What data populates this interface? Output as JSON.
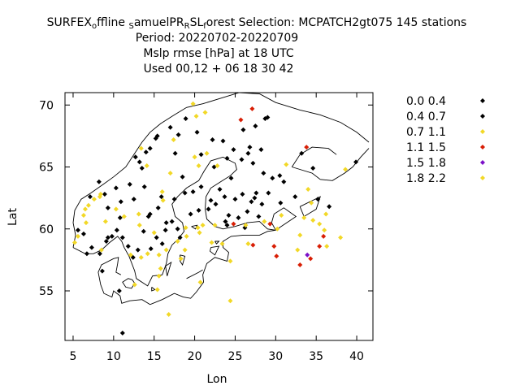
{
  "chart_data": {
    "type": "scatter",
    "title": {
      "line1_parts": [
        {
          "text": "S",
          "sub": false
        },
        {
          "text": "URFEX",
          "sub": false
        },
        {
          "text": "o",
          "sub": true
        },
        {
          "text": "ffline ",
          "sub": false
        },
        {
          "text": "S",
          "sub": true
        },
        {
          "text": "amuelPR",
          "sub": false
        },
        {
          "text": "R",
          "sub": true
        },
        {
          "text": "SL",
          "sub": false
        },
        {
          "text": "f",
          "sub": true
        },
        {
          "text": "orest   Selection: MCPATCH2gt075    145 stations",
          "sub": false
        }
      ],
      "line2": "Period: 20220702-20220709",
      "line3": "Mslp rmse [hPa] at  18 UTC",
      "line4": "Used  00,12  + 06 18 30 42"
    },
    "xlabel": "Lon",
    "ylabel": "Lat",
    "xlim": [
      4,
      42
    ],
    "ylim": [
      51,
      71
    ],
    "xticks": [
      "5",
      "10",
      "15",
      "20",
      "25",
      "30",
      "35",
      "40"
    ],
    "xtick_values": [
      5,
      10,
      15,
      20,
      25,
      30,
      35,
      40
    ],
    "yticks": [
      "55",
      "60",
      "65",
      "70"
    ],
    "ytick_values": [
      55,
      60,
      65,
      70
    ],
    "grid": false,
    "legend_position": "right",
    "series": [
      {
        "name": "0.0 0.4",
        "color": "#000000",
        "points": [
          [
            28.7,
            68.9
          ],
          [
            27.5,
            68.3
          ],
          [
            26.8,
            66.6
          ],
          [
            28.2,
            66.4
          ],
          [
            24.8,
            66.4
          ],
          [
            25.8,
            65.6
          ],
          [
            27.2,
            65.3
          ],
          [
            30.5,
            64.3
          ],
          [
            24.5,
            64.1
          ],
          [
            23.1,
            63.2
          ],
          [
            25.9,
            62.8
          ],
          [
            27.0,
            62.2
          ],
          [
            29.1,
            62.9
          ],
          [
            22.6,
            62.0
          ],
          [
            21.7,
            61.6
          ],
          [
            24.2,
            61.1
          ],
          [
            27.9,
            61.0
          ],
          [
            26.5,
            61.4
          ],
          [
            23.8,
            60.6
          ],
          [
            25.4,
            60.9
          ],
          [
            33.2,
            66.1
          ],
          [
            35.2,
            62.4
          ],
          [
            24.0,
            60.3
          ],
          [
            26.2,
            60.1
          ],
          [
            20.8,
            63.4
          ],
          [
            19.8,
            63.0
          ],
          [
            18.5,
            64.2
          ],
          [
            15.9,
            62.6
          ],
          [
            13.8,
            63.4
          ],
          [
            12.5,
            62.4
          ],
          [
            14.5,
            61.2
          ],
          [
            17.2,
            60.6
          ],
          [
            16.4,
            59.9
          ],
          [
            18.2,
            59.3
          ],
          [
            13.7,
            59.8
          ],
          [
            11.8,
            58.6
          ],
          [
            12.4,
            57.7
          ],
          [
            10.4,
            59.9
          ],
          [
            9.8,
            59.4
          ],
          [
            9.1,
            59.0
          ],
          [
            7.3,
            58.5
          ],
          [
            5.6,
            59.9
          ],
          [
            7.1,
            62.6
          ],
          [
            8.2,
            63.8
          ],
          [
            10.9,
            62.2
          ],
          [
            13.2,
            65.4
          ],
          [
            14.5,
            66.5
          ],
          [
            15.2,
            67.3
          ],
          [
            17.0,
            68.2
          ],
          [
            18.9,
            68.9
          ],
          [
            11.1,
            51.6
          ],
          [
            39.9,
            65.4
          ]
        ]
      },
      {
        "name": "0.4 0.7",
        "color": "#000000",
        "points": [
          [
            26.0,
            68.0
          ],
          [
            29.0,
            69.0
          ],
          [
            22.2,
            67.2
          ],
          [
            23.5,
            67.1
          ],
          [
            20.3,
            67.8
          ],
          [
            17.6,
            66.1
          ],
          [
            20.8,
            66.0
          ],
          [
            24.0,
            65.7
          ],
          [
            22.4,
            65.0
          ],
          [
            28.5,
            64.5
          ],
          [
            29.6,
            64.1
          ],
          [
            31.0,
            63.8
          ],
          [
            32.4,
            62.6
          ],
          [
            27.6,
            62.9
          ],
          [
            28.3,
            62.0
          ],
          [
            25.0,
            62.4
          ],
          [
            23.7,
            62.6
          ],
          [
            22.0,
            62.3
          ],
          [
            18.8,
            62.9
          ],
          [
            17.5,
            62.4
          ],
          [
            15.5,
            61.7
          ],
          [
            14.3,
            61.0
          ],
          [
            20.5,
            61.5
          ],
          [
            19.5,
            61.2
          ],
          [
            16.5,
            60.5
          ],
          [
            17.9,
            60.0
          ],
          [
            15.3,
            59.3
          ],
          [
            16.0,
            58.8
          ],
          [
            14.6,
            58.4
          ],
          [
            13.0,
            58.3
          ],
          [
            11.1,
            59.3
          ],
          [
            10.8,
            60.9
          ],
          [
            9.3,
            61.7
          ],
          [
            8.9,
            62.8
          ],
          [
            10.3,
            63.3
          ],
          [
            12.0,
            63.6
          ],
          [
            13.5,
            64.9
          ],
          [
            12.7,
            65.8
          ],
          [
            14.0,
            66.2
          ],
          [
            15.4,
            67.5
          ],
          [
            18.0,
            67.6
          ],
          [
            26.6,
            66.1
          ],
          [
            30.6,
            62.1
          ],
          [
            36.6,
            61.8
          ],
          [
            34.6,
            64.9
          ],
          [
            27.4,
            62.5
          ],
          [
            9.3,
            59.3
          ],
          [
            6.7,
            58.0
          ],
          [
            8.3,
            58.0
          ],
          [
            6.3,
            59.6
          ],
          [
            10.7,
            55.0
          ],
          [
            8.6,
            56.6
          ]
        ]
      },
      {
        "name": "0.7 1.1",
        "color": "#f2d827",
        "points": [
          [
            19.8,
            70.1
          ],
          [
            20.2,
            69.1
          ],
          [
            21.3,
            69.4
          ],
          [
            17.4,
            67.2
          ],
          [
            17.0,
            64.5
          ],
          [
            14.1,
            65.1
          ],
          [
            13.4,
            66.5
          ],
          [
            16.0,
            63.0
          ],
          [
            20.0,
            65.8
          ],
          [
            21.5,
            66.1
          ],
          [
            31.3,
            65.2
          ],
          [
            38.6,
            64.8
          ],
          [
            34.0,
            63.2
          ],
          [
            34.4,
            62.1
          ],
          [
            33.5,
            60.9
          ],
          [
            34.6,
            60.7
          ],
          [
            35.4,
            60.4
          ],
          [
            36.2,
            61.2
          ],
          [
            30.7,
            61.1
          ],
          [
            28.6,
            60.6
          ],
          [
            26.3,
            60.3
          ],
          [
            22.5,
            60.3
          ],
          [
            20.4,
            60.1
          ],
          [
            18.9,
            60.1
          ],
          [
            21.0,
            60.3
          ],
          [
            17.9,
            59.0
          ],
          [
            16.5,
            58.3
          ],
          [
            15.6,
            57.9
          ],
          [
            13.4,
            57.7
          ],
          [
            15.8,
            56.8
          ],
          [
            18.3,
            57.6
          ],
          [
            15.4,
            55.1
          ],
          [
            16.8,
            53.1
          ],
          [
            20.7,
            55.7
          ],
          [
            24.4,
            54.2
          ],
          [
            24.4,
            57.4
          ],
          [
            20.6,
            59.7
          ],
          [
            22.1,
            58.9
          ],
          [
            10.3,
            61.6
          ],
          [
            7.6,
            62.4
          ],
          [
            8.3,
            62.6
          ],
          [
            6.9,
            61.9
          ],
          [
            6.5,
            61.6
          ],
          [
            6.3,
            61.1
          ],
          [
            6.6,
            60.5
          ],
          [
            5.6,
            59.4
          ],
          [
            5.2,
            58.9
          ],
          [
            38.0,
            59.3
          ],
          [
            36.0,
            59.9
          ],
          [
            32.7,
            58.3
          ],
          [
            8.5,
            58.3
          ],
          [
            12.1,
            57.9
          ],
          [
            15.6,
            56.2
          ],
          [
            13.1,
            61.2
          ],
          [
            15.0,
            59.7
          ],
          [
            19.0,
            59.4
          ]
        ]
      },
      {
        "name": "1.1 1.5",
        "color": "#d81e05",
        "points": [
          [
            27.1,
            69.7
          ],
          [
            25.7,
            68.8
          ],
          [
            24.8,
            60.4
          ],
          [
            27.2,
            58.7
          ],
          [
            29.3,
            60.4
          ],
          [
            29.8,
            58.6
          ],
          [
            30.1,
            57.8
          ],
          [
            33.0,
            57.1
          ],
          [
            34.3,
            57.6
          ],
          [
            35.4,
            58.6
          ],
          [
            35.9,
            59.4
          ],
          [
            33.8,
            66.6
          ]
        ]
      },
      {
        "name": "1.5 1.8",
        "color": "#7c10c8",
        "points": [
          [
            33.9,
            57.9
          ]
        ]
      },
      {
        "name": "1.8 2.2",
        "color": "#f2d827",
        "points": [
          [
            20.5,
            65.1
          ],
          [
            22.8,
            65.1
          ],
          [
            16.1,
            62.3
          ],
          [
            8.4,
            62.8
          ],
          [
            9.0,
            60.6
          ],
          [
            11.3,
            61.0
          ],
          [
            13.2,
            60.3
          ],
          [
            14.2,
            58.0
          ],
          [
            12.6,
            55.5
          ],
          [
            18.8,
            58.3
          ],
          [
            23.4,
            58.8
          ],
          [
            26.6,
            58.8
          ],
          [
            30.2,
            60.0
          ],
          [
            33.0,
            59.5
          ],
          [
            36.3,
            58.6
          ]
        ]
      }
    ]
  }
}
